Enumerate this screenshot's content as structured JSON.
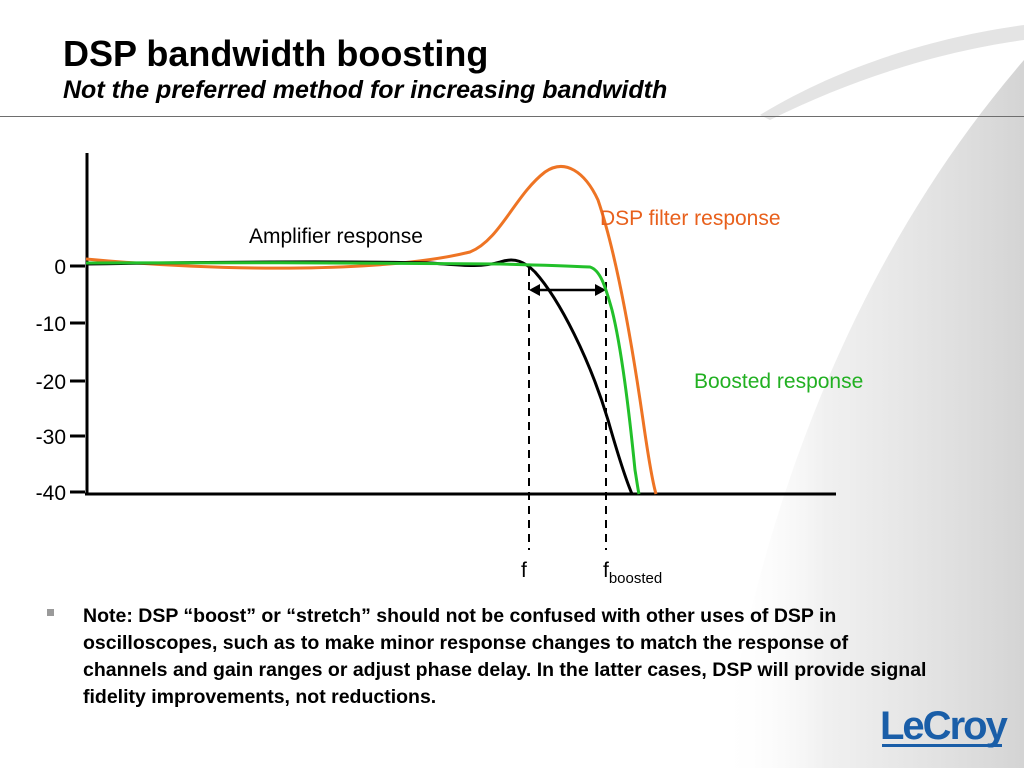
{
  "slide": {
    "title": "DSP bandwidth boosting",
    "subtitle": "Not the preferred method for increasing bandwidth"
  },
  "diagram": {
    "y_ticks": [
      "0",
      "-10",
      "-20",
      "-30",
      "-40"
    ],
    "label_amplifier": "Amplifier response",
    "label_dsp_filter": "DSP filter response",
    "label_boosted": "Boosted response",
    "marker_f": "f",
    "marker_fboosted_base": "f",
    "marker_fboosted_sub": "boosted",
    "colors": {
      "amplifier": "#000000",
      "dsp_filter": "#ee7424",
      "boosted": "#22c02a",
      "dsp_label": "#e8601c",
      "boosted_label": "#22b022"
    }
  },
  "note": {
    "text": "Note: DSP “boost” or “stretch” should not be confused with other uses of DSP in oscilloscopes, such as to make minor response changes to match the response of channels and gain ranges or adjust phase delay.  In the latter cases, DSP will provide signal fidelity improvements, not reductions."
  },
  "logo": {
    "text": "LeCroy",
    "color": "#1a5ea8"
  }
}
